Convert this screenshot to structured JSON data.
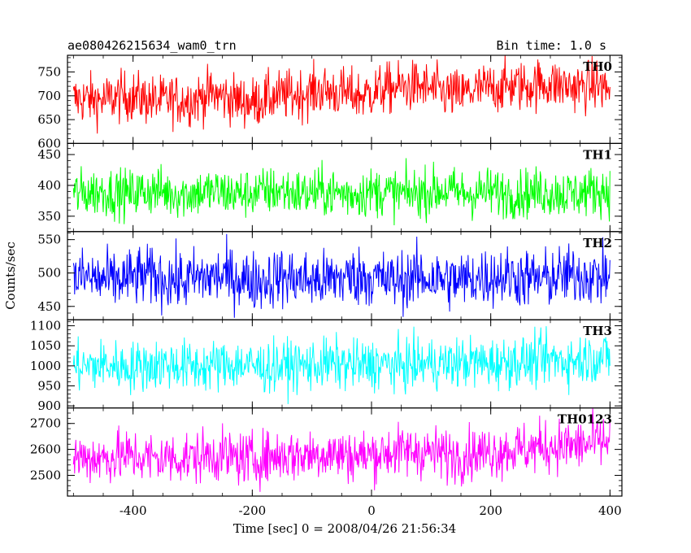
{
  "header": {
    "title": "ae080426215634_wam0_trn",
    "bin_time": "Bin time: 1.0 s"
  },
  "chart_data": {
    "type": "line",
    "xlabel": "Time [sec] 0 = 2008/04/26 21:56:34",
    "ylabel": "Counts/sec",
    "xlim": [
      -510,
      420
    ],
    "data_range": [
      -500,
      400
    ],
    "x_ticks": [
      -400,
      -200,
      0,
      200,
      400
    ],
    "bin_time_s": 1.0,
    "panels": [
      {
        "name": "TH0",
        "color": "#ff0000",
        "ylim": [
          600,
          785
        ],
        "y_ticks": [
          600,
          650,
          700,
          750
        ],
        "values": [
          692,
          694,
          690,
          696,
          700,
          695,
          688,
          692,
          690,
          694,
          704,
          698,
          690,
          686,
          694,
          700,
          702,
          706,
          712,
          708,
          704,
          700,
          710,
          716,
          718,
          720,
          714,
          706,
          702,
          710,
          716,
          718,
          722,
          720,
          726,
          724,
          720,
          718,
          724,
          712
        ]
      },
      {
        "name": "TH1",
        "color": "#00ff00",
        "ylim": [
          325,
          468
        ],
        "y_ticks": [
          350,
          400,
          450
        ],
        "values": [
          386,
          388,
          390,
          388,
          386,
          390,
          392,
          388,
          386,
          388,
          390,
          388,
          386,
          388,
          390,
          392,
          388,
          386,
          390,
          388,
          386,
          388,
          390,
          388,
          386,
          388,
          390,
          392,
          388,
          386,
          390,
          388,
          386,
          388,
          390,
          388,
          386,
          388,
          392,
          390
        ]
      },
      {
        "name": "TH2",
        "color": "#0000ff",
        "ylim": [
          430,
          562
        ],
        "y_ticks": [
          450,
          500,
          550
        ],
        "values": [
          492,
          494,
          490,
          488,
          492,
          496,
          494,
          490,
          488,
          492,
          494,
          496,
          492,
          488,
          490,
          494,
          492,
          490,
          488,
          492,
          494,
          496,
          492,
          488,
          490,
          494,
          492,
          490,
          488,
          492,
          494,
          496,
          494,
          492,
          490,
          494,
          496,
          498,
          494,
          496
        ]
      },
      {
        "name": "TH3",
        "color": "#00ffff",
        "ylim": [
          895,
          1115
        ],
        "y_ticks": [
          900,
          950,
          1000,
          1050,
          1100
        ],
        "values": [
          1000,
          998,
          1002,
          1000,
          996,
          1000,
          1002,
          1004,
          1000,
          998,
          1000,
          1002,
          1004,
          1000,
          996,
          998,
          1002,
          1000,
          1004,
          1006,
          1002,
          1000,
          1004,
          1002,
          1000,
          1004,
          1006,
          1004,
          1008,
          1010,
          1006,
          1008,
          1012,
          1010,
          1014,
          1016,
          1012,
          1018,
          1020,
          1022
        ]
      },
      {
        "name": "TH0123",
        "color": "#ff00ff",
        "ylim": [
          2420,
          2760
        ],
        "y_ticks": [
          2500,
          2600,
          2700
        ],
        "values": [
          2568,
          2570,
          2566,
          2572,
          2576,
          2570,
          2564,
          2568,
          2566,
          2570,
          2580,
          2574,
          2566,
          2562,
          2570,
          2576,
          2578,
          2580,
          2586,
          2582,
          2578,
          2574,
          2584,
          2590,
          2592,
          2594,
          2588,
          2580,
          2576,
          2584,
          2590,
          2594,
          2600,
          2602,
          2610,
          2614,
          2612,
          2616,
          2626,
          2630
        ]
      }
    ]
  }
}
